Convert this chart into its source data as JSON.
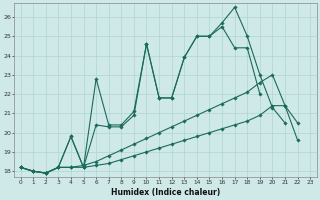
{
  "title": "",
  "xlabel": "Humidex (Indice chaleur)",
  "ylabel": "",
  "bg_color": "#cfe8e8",
  "grid_color": "#b0d4d4",
  "line_color": "#1a6b5a",
  "xlim": [
    -0.5,
    23.5
  ],
  "ylim": [
    17.7,
    26.7
  ],
  "xticks": [
    0,
    1,
    2,
    3,
    4,
    5,
    6,
    7,
    8,
    9,
    10,
    11,
    12,
    13,
    14,
    15,
    16,
    17,
    18,
    19,
    20,
    21,
    22,
    23
  ],
  "yticks": [
    18,
    19,
    20,
    21,
    22,
    23,
    24,
    25,
    26
  ],
  "series": [
    {
      "x": [
        0,
        1,
        2,
        3,
        4,
        5,
        6,
        7,
        8,
        9,
        10,
        11,
        12,
        13,
        14,
        15,
        16,
        17,
        18,
        19,
        20,
        21
      ],
      "y": [
        18.2,
        18.0,
        17.9,
        18.2,
        19.8,
        18.2,
        22.8,
        20.4,
        20.4,
        21.1,
        24.6,
        21.8,
        21.8,
        23.9,
        25.0,
        25.0,
        25.7,
        26.5,
        25.0,
        23.0,
        21.3,
        20.5
      ]
    },
    {
      "x": [
        0,
        1,
        2,
        3,
        4,
        5,
        6,
        7,
        8,
        9,
        10,
        11,
        12,
        13,
        14,
        15,
        16,
        17,
        18,
        19
      ],
      "y": [
        18.2,
        18.0,
        17.9,
        18.2,
        19.8,
        18.2,
        20.4,
        20.3,
        20.3,
        20.9,
        24.6,
        21.8,
        21.8,
        23.9,
        25.0,
        25.0,
        25.5,
        24.4,
        24.4,
        22.0
      ]
    },
    {
      "x": [
        0,
        1,
        2,
        3,
        4,
        5,
        6,
        7,
        8,
        9,
        10,
        11,
        12,
        13,
        14,
        15,
        16,
        17,
        18,
        19,
        20,
        21,
        22
      ],
      "y": [
        18.2,
        18.0,
        17.9,
        18.2,
        18.2,
        18.2,
        18.3,
        18.4,
        18.6,
        18.8,
        19.0,
        19.2,
        19.4,
        19.6,
        19.8,
        20.0,
        20.2,
        20.4,
        20.6,
        20.9,
        21.4,
        21.4,
        19.6
      ]
    },
    {
      "x": [
        0,
        1,
        2,
        3,
        4,
        5,
        6,
        7,
        8,
        9,
        10,
        11,
        12,
        13,
        14,
        15,
        16,
        17,
        18,
        19,
        20,
        21,
        22
      ],
      "y": [
        18.2,
        18.0,
        17.9,
        18.2,
        18.2,
        18.3,
        18.5,
        18.8,
        19.1,
        19.4,
        19.7,
        20.0,
        20.3,
        20.6,
        20.9,
        21.2,
        21.5,
        21.8,
        22.1,
        22.6,
        23.0,
        21.4,
        20.5
      ]
    }
  ]
}
